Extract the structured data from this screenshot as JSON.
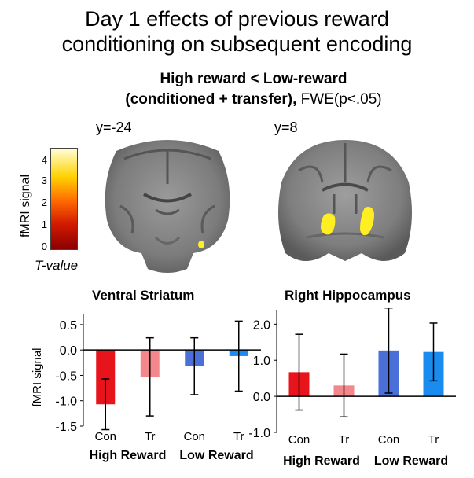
{
  "title": {
    "line1": "Day 1 effects of previous reward",
    "line2": "conditioning on subsequent encoding"
  },
  "subtitle": {
    "line1": "High reward < Low-reward",
    "line2_bold": "(conditioned + transfer),",
    "line2_plain": "FWE(p<.05)"
  },
  "brain_slices": [
    {
      "label": "y=-24"
    },
    {
      "label": "y=8"
    }
  ],
  "colorbar": {
    "label": "fMRI signal",
    "sublabel": "T-value",
    "ticks": [
      "0",
      "1",
      "2",
      "3",
      "4"
    ]
  },
  "colors": {
    "high_con": "#e8141c",
    "high_tr": "#f4878b",
    "low_con": "#4a6fd8",
    "low_tr": "#1a8cf0",
    "activation": "#ffee22"
  },
  "chart_data": [
    {
      "type": "bar",
      "title": "Ventral Striatum",
      "ylabel": "fMRI signal",
      "ylim": [
        -1.5,
        0.7
      ],
      "yticks": [
        "0.5",
        "0.0",
        "-0.5",
        "-1.0",
        "-1.5"
      ],
      "ytick_values": [
        0.5,
        0.0,
        -0.5,
        -1.0,
        -1.5
      ],
      "categories": [
        "Con",
        "Tr",
        "Con",
        "Tr"
      ],
      "groups": [
        "High Reward",
        "Low Reward"
      ],
      "values": [
        -1.07,
        -0.53,
        -0.32,
        -0.12
      ],
      "errors": [
        0.5,
        0.77,
        0.56,
        0.69
      ]
    },
    {
      "type": "bar",
      "title": "Right Hippocampus",
      "ylabel": "",
      "ylim": [
        -1.0,
        2.4
      ],
      "yticks": [
        "2.0",
        "1.0",
        "0.0",
        "-1.0"
      ],
      "ytick_values": [
        2.0,
        1.0,
        0.0,
        -1.0
      ],
      "categories": [
        "Con",
        "Tr",
        "Con",
        "Tr"
      ],
      "groups": [
        "High Reward",
        "Low Reward"
      ],
      "values": [
        0.67,
        0.3,
        1.27,
        1.23
      ],
      "errors": [
        1.05,
        0.87,
        1.18,
        0.8
      ]
    }
  ]
}
